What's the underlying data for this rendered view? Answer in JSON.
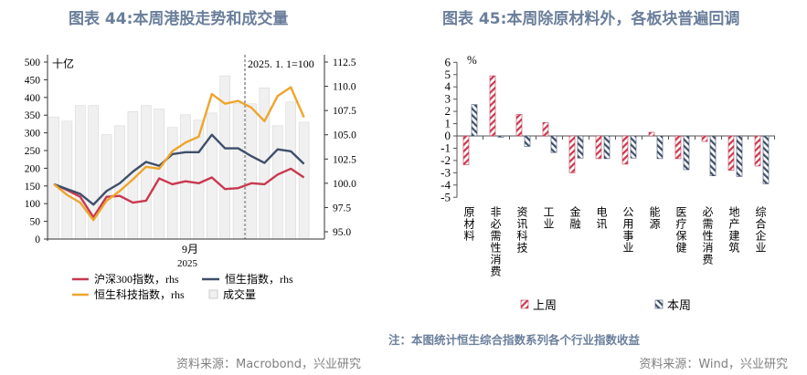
{
  "left": {
    "title": "图表 44:本周港股走势和成交量",
    "source": "资料来源：Macrobond，兴业研究",
    "chart_data": {
      "type": "bar+line",
      "left_unit": "十亿",
      "right_unit": "2025. 1. 1=100",
      "x_label": "9月",
      "x_year": "2025",
      "ylim_left": [
        0,
        500
      ],
      "yticks_left": [
        0,
        50,
        100,
        150,
        200,
        250,
        300,
        350,
        400,
        450,
        500
      ],
      "ylim_right": [
        95.0,
        112.5
      ],
      "yticks_right": [
        "95.0",
        "97.5",
        "100.0",
        "102.5",
        "105.0",
        "107.5",
        "110.0",
        "112.5"
      ],
      "volume": {
        "name": "成交量",
        "color": "#f0f0f0",
        "values": [
          345,
          333,
          377,
          377,
          295,
          320,
          360,
          377,
          367,
          315,
          351,
          336,
          356,
          461,
          383,
          382,
          427,
          320,
          387,
          330
        ]
      },
      "series": [
        {
          "name": "沪深300指数，rhs",
          "color": "#c8394f",
          "values": [
            99.9,
            99.3,
            98.6,
            96.5,
            98.6,
            98.7,
            98.0,
            98.2,
            100.5,
            99.9,
            100.2,
            100.0,
            100.6,
            99.4,
            99.5,
            100.0,
            99.9,
            100.9,
            101.5,
            100.6
          ]
        },
        {
          "name": "恒生指数，rhs",
          "color": "#3e4f6b",
          "values": [
            99.9,
            99.4,
            98.9,
            97.8,
            99.2,
            100.0,
            101.2,
            102.2,
            101.8,
            103.0,
            103.2,
            103.2,
            105.0,
            103.6,
            103.6,
            102.8,
            102.1,
            103.5,
            103.3,
            102.0
          ]
        },
        {
          "name": "恒生科技指数，rhs",
          "color": "#eea52c",
          "values": [
            99.9,
            98.8,
            98.0,
            96.2,
            98.2,
            99.2,
            100.4,
            101.7,
            101.5,
            103.3,
            104.2,
            104.8,
            109.2,
            108.2,
            108.5,
            107.8,
            106.4,
            109.0,
            109.9,
            106.8
          ]
        }
      ]
    }
  },
  "right": {
    "title": "图表 45:本周除原材料外，各板块普遍回调",
    "note": "注：本图统计恒生综合指数系列各个行业指数收益",
    "source": "资料来源：Wind，兴业研究",
    "chart_data": {
      "type": "bar",
      "unit": "%",
      "ylim": [
        -5,
        6
      ],
      "yticks": [
        6,
        5,
        4,
        3,
        2,
        1,
        0,
        -1,
        -2,
        -3,
        -4,
        -5
      ],
      "categories": [
        "原材料",
        "非必需性消费",
        "资讯科技",
        "工业",
        "金融",
        "电讯",
        "公用事业",
        "能源",
        "医疗保健",
        "必需性消费",
        "地产建筑",
        "综合企业"
      ],
      "series": [
        {
          "name": "上周",
          "color": "#c8394f",
          "values": [
            -2.35,
            4.9,
            1.75,
            1.1,
            -3.0,
            -1.85,
            -2.3,
            0.3,
            -1.85,
            -0.45,
            -2.8,
            -2.45
          ]
        },
        {
          "name": "本周",
          "color": "#3e4f6b",
          "values": [
            2.55,
            -0.1,
            -0.85,
            -1.35,
            -1.8,
            -1.85,
            -1.8,
            -1.85,
            -2.75,
            -3.25,
            -3.3,
            -3.9
          ]
        }
      ]
    }
  }
}
